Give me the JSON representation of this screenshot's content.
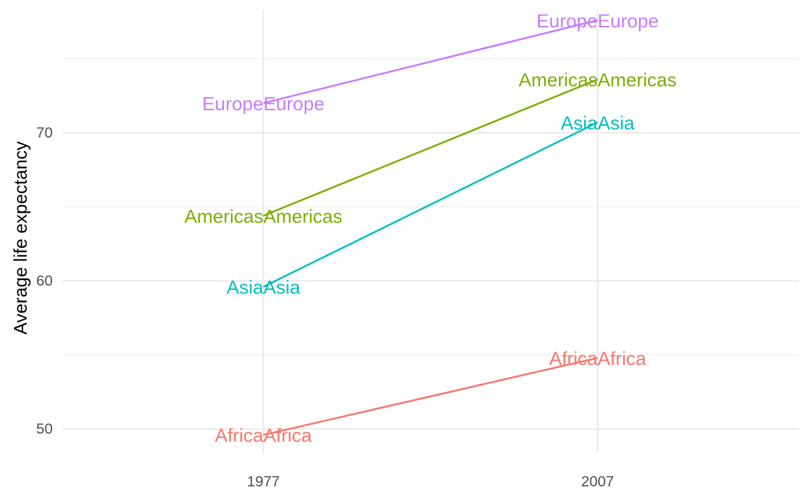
{
  "chart_data": {
    "type": "line",
    "title": "",
    "xlabel": "",
    "ylabel": "Average life expectancy",
    "x": [
      "1977",
      "2007"
    ],
    "ylim": [
      48.4,
      78.3
    ],
    "y_ticks": [
      50,
      60,
      70
    ],
    "y_minor_ticks": [
      55,
      65,
      75
    ],
    "grid": true,
    "legend": "none",
    "series": [
      {
        "name": "Africa",
        "values": [
          49.6,
          54.8
        ],
        "color": "#F8766D",
        "labels": [
          "AfricaAfrica",
          "AfricaAfrica"
        ]
      },
      {
        "name": "Americas",
        "values": [
          64.4,
          73.6
        ],
        "color": "#7CAE00",
        "labels": [
          "AmericasAmericas",
          "AmericasAmericas"
        ]
      },
      {
        "name": "Asia",
        "values": [
          59.6,
          70.7
        ],
        "color": "#00BFC4",
        "labels": [
          "AsiaAsia",
          "AsiaAsia"
        ]
      },
      {
        "name": "Europe",
        "values": [
          72.0,
          77.6
        ],
        "color": "#C77CFF",
        "labels": [
          "EuropeEurope",
          "EuropeEurope"
        ]
      }
    ]
  }
}
